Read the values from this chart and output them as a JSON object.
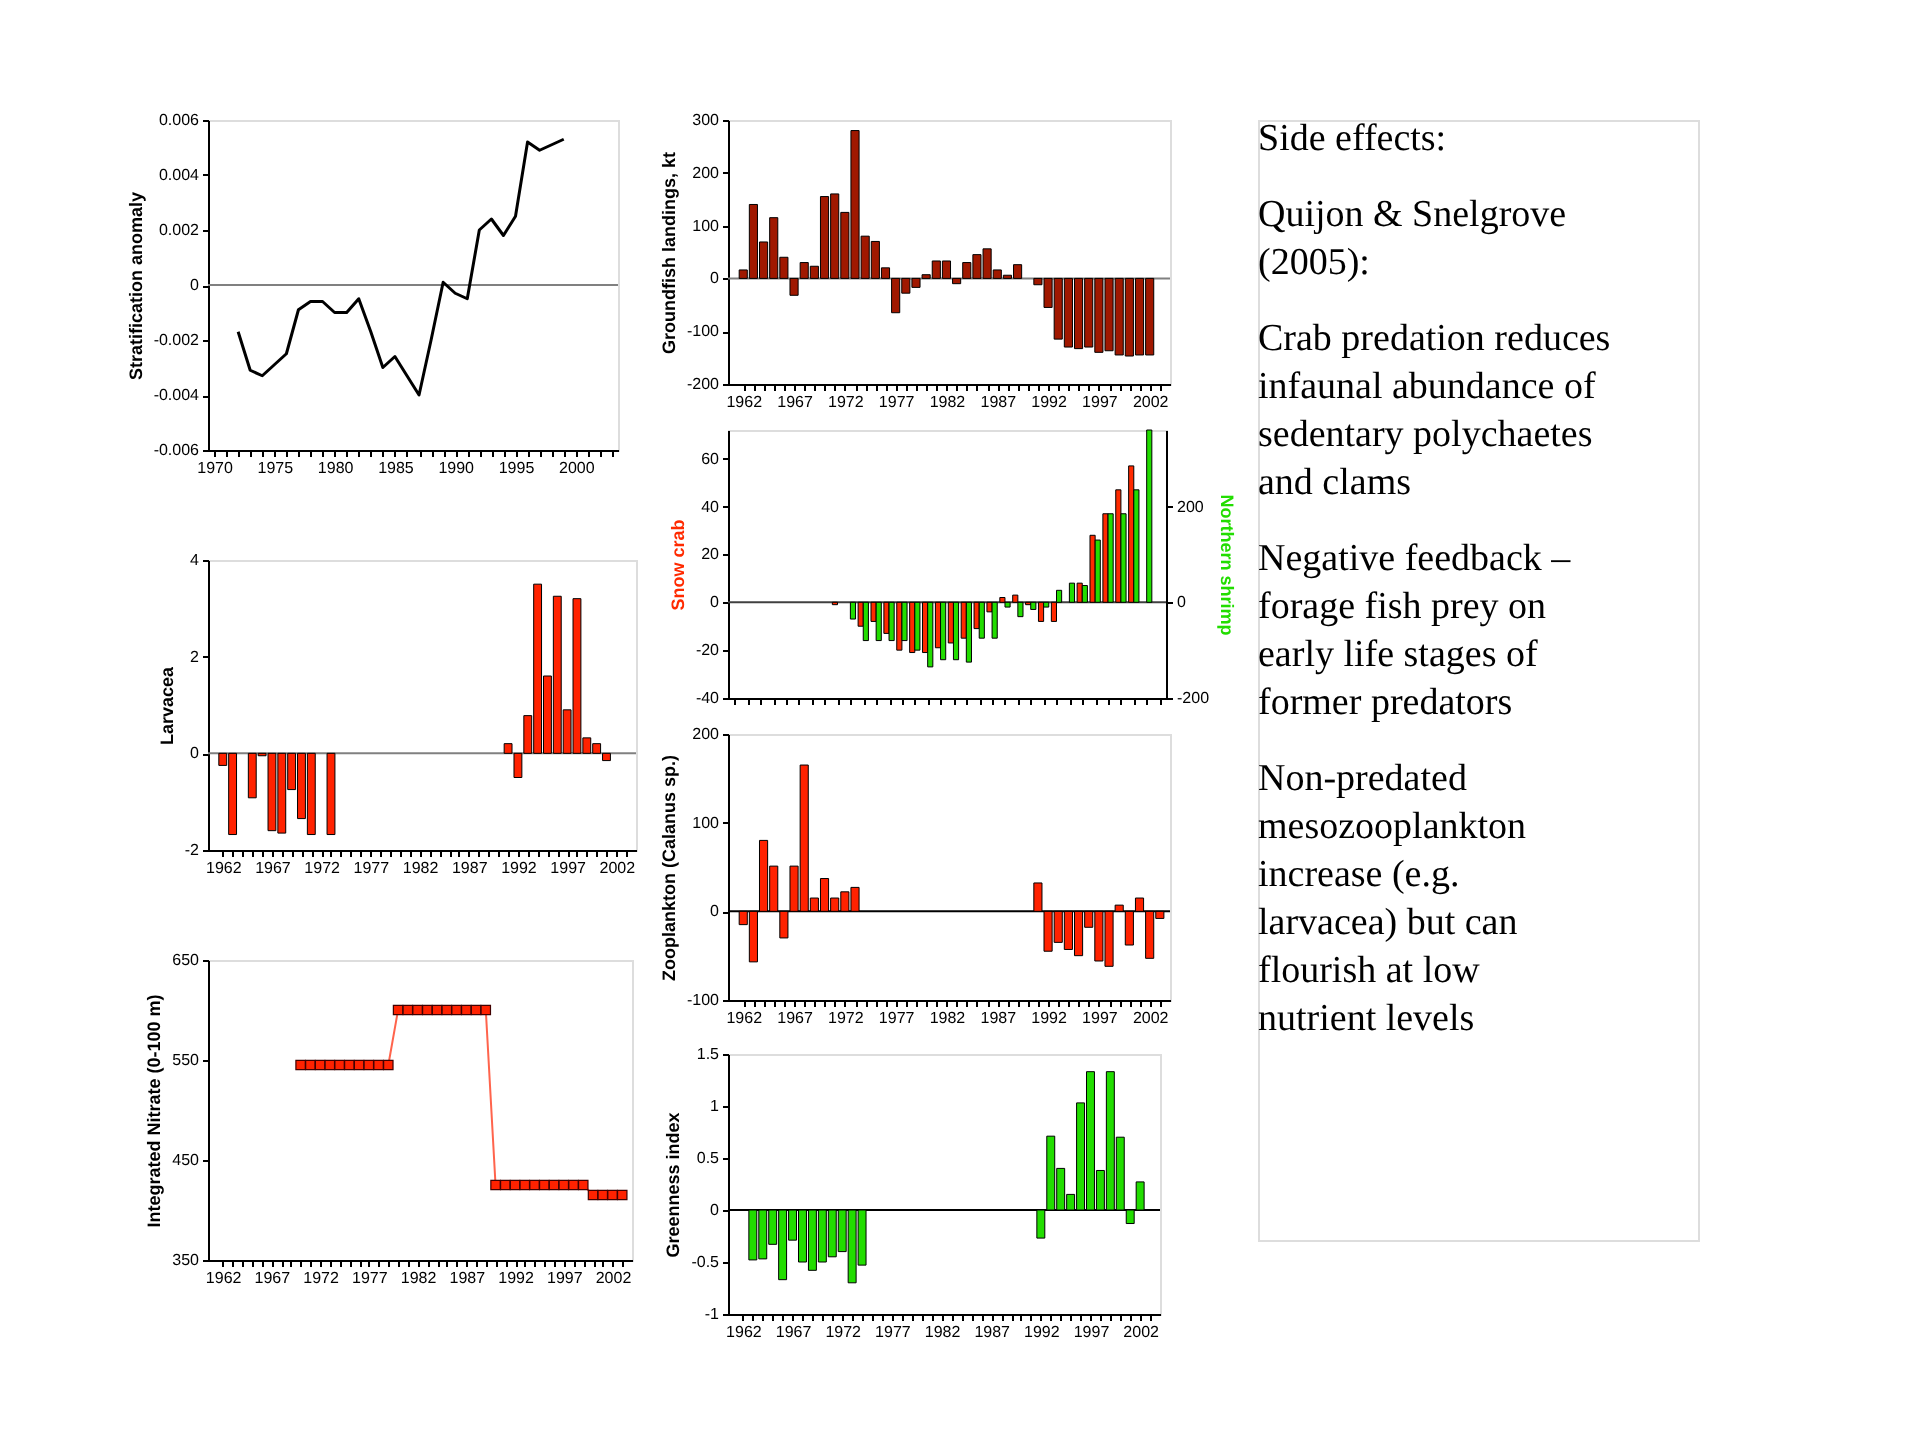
{
  "chart_data": [
    {
      "type": "line",
      "ylabel": "Stratification anomaly",
      "x": [
        1972,
        1973,
        1974,
        1975,
        1976,
        1977,
        1978,
        1979,
        1980,
        1981,
        1982,
        1983,
        1984,
        1985,
        1986,
        1987,
        1988,
        1989,
        1990,
        1991,
        1992,
        1993,
        1994,
        1995,
        1996,
        1997,
        1998,
        1999
      ],
      "series": [
        {
          "color": "#000000",
          "values": [
            -0.0017,
            -0.0031,
            -0.0033,
            -0.0029,
            -0.0025,
            -0.0009,
            -0.0006,
            -0.0006,
            -0.001,
            -0.001,
            -0.0005,
            -0.0017,
            -0.003,
            -0.0026,
            -0.0033,
            -0.004,
            -0.002,
            0.0001,
            -0.0003,
            -0.0005,
            0.002,
            0.0024,
            0.0018,
            0.0025,
            0.0052,
            0.0049,
            0.0051,
            0.0053
          ]
        }
      ],
      "xlim": [
        1969.5,
        2003.5
      ],
      "ylim": [
        -0.006,
        0.006
      ],
      "yticks": [
        -0.006,
        -0.004,
        -0.002,
        0,
        0.002,
        0.004,
        0.006
      ],
      "xticks": [
        1970,
        {
          "value": 1971,
          "label": null
        },
        {
          "value": 1972,
          "label": null
        },
        {
          "value": 1973,
          "label": null
        },
        {
          "value": 1974,
          "label": null
        },
        1975,
        {
          "value": 1976,
          "label": null
        },
        {
          "value": 1977,
          "label": null
        },
        {
          "value": 1978,
          "label": null
        },
        {
          "value": 1979,
          "label": null
        },
        1980,
        {
          "value": 1981,
          "label": null
        },
        {
          "value": 1982,
          "label": null
        },
        {
          "value": 1983,
          "label": null
        },
        {
          "value": 1984,
          "label": null
        },
        1985,
        {
          "value": 1986,
          "label": null
        },
        {
          "value": 1987,
          "label": null
        },
        {
          "value": 1988,
          "label": null
        },
        {
          "value": 1989,
          "label": null
        },
        1990,
        {
          "value": 1991,
          "label": null
        },
        {
          "value": 1992,
          "label": null
        },
        {
          "value": 1993,
          "label": null
        },
        {
          "value": 1994,
          "label": null
        },
        1995,
        {
          "value": 1996,
          "label": null
        },
        {
          "value": 1997,
          "label": null
        },
        {
          "value": 1998,
          "label": null
        },
        {
          "value": 1999,
          "label": null
        },
        2000,
        {
          "value": 2001,
          "label": null
        },
        {
          "value": 2002,
          "label": null
        },
        {
          "value": 2003,
          "label": null
        }
      ],
      "ref_lines": [
        {
          "axis": "y",
          "value": 0,
          "color": "#808080"
        }
      ]
    },
    {
      "type": "bar",
      "ylabel": "Larvacea",
      "x": [
        1962,
        1963,
        1965,
        1966,
        1967,
        1968,
        1969,
        1970,
        1971,
        1973,
        1991,
        1992,
        1993,
        1994,
        1995,
        1996,
        1997,
        1998,
        1999,
        2000,
        2001
      ],
      "values": [
        -0.25,
        -1.68,
        -0.92,
        -0.05,
        -1.6,
        -1.65,
        -0.75,
        -1.35,
        -1.68,
        -1.68,
        0.2,
        -0.5,
        0.78,
        3.5,
        1.6,
        3.25,
        0.9,
        3.2,
        0.32,
        0.2,
        -0.15
      ],
      "color": "#ff2200",
      "xlim": [
        1960.5,
        2004
      ],
      "ylim": [
        -2,
        4
      ],
      "yticks": [
        -2,
        0,
        2,
        4
      ],
      "xticks": [
        1962,
        {
          "value": 1963,
          "label": null
        },
        {
          "value": 1964,
          "label": null
        },
        {
          "value": 1965,
          "label": null
        },
        {
          "value": 1966,
          "label": null
        },
        1967,
        {
          "value": 1968,
          "label": null
        },
        {
          "value": 1969,
          "label": null
        },
        {
          "value": 1970,
          "label": null
        },
        {
          "value": 1971,
          "label": null
        },
        1972,
        {
          "value": 1973,
          "label": null
        },
        {
          "value": 1974,
          "label": null
        },
        {
          "value": 1975,
          "label": null
        },
        {
          "value": 1976,
          "label": null
        },
        1977,
        {
          "value": 1978,
          "label": null
        },
        {
          "value": 1979,
          "label": null
        },
        {
          "value": 1980,
          "label": null
        },
        {
          "value": 1981,
          "label": null
        },
        1982,
        {
          "value": 1983,
          "label": null
        },
        {
          "value": 1984,
          "label": null
        },
        {
          "value": 1985,
          "label": null
        },
        {
          "value": 1986,
          "label": null
        },
        1987,
        {
          "value": 1988,
          "label": null
        },
        {
          "value": 1989,
          "label": null
        },
        {
          "value": 1990,
          "label": null
        },
        {
          "value": 1991,
          "label": null
        },
        1992,
        {
          "value": 1993,
          "label": null
        },
        {
          "value": 1994,
          "label": null
        },
        {
          "value": 1995,
          "label": null
        },
        {
          "value": 1996,
          "label": null
        },
        1997,
        {
          "value": 1998,
          "label": null
        },
        {
          "value": 1999,
          "label": null
        },
        {
          "value": 2000,
          "label": null
        },
        {
          "value": 2001,
          "label": null
        },
        2002,
        {
          "value": 2003,
          "label": null
        }
      ],
      "ref_lines": [
        {
          "axis": "y",
          "value": 0,
          "color": "#808080"
        }
      ]
    },
    {
      "type": "line",
      "ylabel": "Integrated Nitrate (0-100 m)",
      "marker": "square",
      "x": [
        1970,
        1971,
        1972,
        1973,
        1974,
        1975,
        1976,
        1977,
        1978,
        1979,
        1980,
        1981,
        1982,
        1983,
        1984,
        1985,
        1986,
        1987,
        1988,
        1989,
        1990,
        1991,
        1992,
        1993,
        1994,
        1995,
        1996,
        1997,
        1998,
        1999,
        2000,
        2001,
        2002,
        2003
      ],
      "series": [
        {
          "color": "#ff2200",
          "values": [
            545,
            545,
            545,
            545,
            545,
            545,
            545,
            545,
            545,
            545,
            600,
            600,
            600,
            600,
            600,
            600,
            600,
            600,
            600,
            600,
            425,
            425,
            425,
            425,
            425,
            425,
            425,
            425,
            425,
            425,
            415,
            415,
            415,
            415
          ]
        }
      ],
      "xlim": [
        1960.5,
        2004
      ],
      "ylim": [
        350,
        650
      ],
      "yticks": [
        350,
        450,
        550,
        650
      ],
      "xticks": [
        1962,
        {
          "value": 1963,
          "label": null
        },
        {
          "value": 1964,
          "label": null
        },
        {
          "value": 1965,
          "label": null
        },
        {
          "value": 1966,
          "label": null
        },
        1967,
        {
          "value": 1968,
          "label": null
        },
        {
          "value": 1969,
          "label": null
        },
        {
          "value": 1970,
          "label": null
        },
        {
          "value": 1971,
          "label": null
        },
        1972,
        {
          "value": 1973,
          "label": null
        },
        {
          "value": 1974,
          "label": null
        },
        {
          "value": 1975,
          "label": null
        },
        {
          "value": 1976,
          "label": null
        },
        1977,
        {
          "value": 1978,
          "label": null
        },
        {
          "value": 1979,
          "label": null
        },
        {
          "value": 1980,
          "label": null
        },
        {
          "value": 1981,
          "label": null
        },
        1982,
        {
          "value": 1983,
          "label": null
        },
        {
          "value": 1984,
          "label": null
        },
        {
          "value": 1985,
          "label": null
        },
        {
          "value": 1986,
          "label": null
        },
        1987,
        {
          "value": 1988,
          "label": null
        },
        {
          "value": 1989,
          "label": null
        },
        {
          "value": 1990,
          "label": null
        },
        {
          "value": 1991,
          "label": null
        },
        1992,
        {
          "value": 1993,
          "label": null
        },
        {
          "value": 1994,
          "label": null
        },
        {
          "value": 1995,
          "label": null
        },
        {
          "value": 1996,
          "label": null
        },
        1997,
        {
          "value": 1998,
          "label": null
        },
        {
          "value": 1999,
          "label": null
        },
        {
          "value": 2000,
          "label": null
        },
        {
          "value": 2001,
          "label": null
        },
        2002,
        {
          "value": 2003,
          "label": null
        }
      ]
    },
    {
      "type": "bar",
      "ylabel": "Groundfish landings, kt",
      "x": [
        1962,
        1963,
        1964,
        1965,
        1966,
        1967,
        1968,
        1969,
        1970,
        1971,
        1972,
        1973,
        1974,
        1975,
        1976,
        1977,
        1978,
        1979,
        1980,
        1981,
        1982,
        1983,
        1984,
        1985,
        1986,
        1987,
        1988,
        1989,
        1991,
        1992,
        1993,
        1994,
        1995,
        1996,
        1997,
        1998,
        1999,
        2000,
        2001,
        2002
      ],
      "values": [
        16,
        140,
        69,
        115,
        40,
        -32,
        30,
        23,
        155,
        160,
        125,
        280,
        80,
        70,
        20,
        -65,
        -28,
        -17,
        7,
        33,
        33,
        -10,
        30,
        45,
        56,
        16,
        6,
        26,
        -12,
        -55,
        -115,
        -130,
        -133,
        -130,
        -140,
        -137,
        -145,
        -147,
        -145,
        -145
      ],
      "color": "#a01800",
      "xlim": [
        1960.5,
        2004
      ],
      "ylim": [
        -200,
        300
      ],
      "yticks": [
        -200,
        -100,
        0,
        100,
        200,
        300
      ],
      "xticks": [
        1962,
        {
          "value": 1963,
          "label": null
        },
        {
          "value": 1964,
          "label": null
        },
        {
          "value": 1965,
          "label": null
        },
        {
          "value": 1966,
          "label": null
        },
        1967,
        {
          "value": 1968,
          "label": null
        },
        {
          "value": 1969,
          "label": null
        },
        {
          "value": 1970,
          "label": null
        },
        {
          "value": 1971,
          "label": null
        },
        1972,
        {
          "value": 1973,
          "label": null
        },
        {
          "value": 1974,
          "label": null
        },
        {
          "value": 1975,
          "label": null
        },
        {
          "value": 1976,
          "label": null
        },
        1977,
        {
          "value": 1978,
          "label": null
        },
        {
          "value": 1979,
          "label": null
        },
        {
          "value": 1980,
          "label": null
        },
        {
          "value": 1981,
          "label": null
        },
        1982,
        {
          "value": 1983,
          "label": null
        },
        {
          "value": 1984,
          "label": null
        },
        {
          "value": 1985,
          "label": null
        },
        {
          "value": 1986,
          "label": null
        },
        1987,
        {
          "value": 1988,
          "label": null
        },
        {
          "value": 1989,
          "label": null
        },
        {
          "value": 1990,
          "label": null
        },
        {
          "value": 1991,
          "label": null
        },
        1992,
        {
          "value": 1993,
          "label": null
        },
        {
          "value": 1994,
          "label": null
        },
        {
          "value": 1995,
          "label": null
        },
        {
          "value": 1996,
          "label": null
        },
        1997,
        {
          "value": 1998,
          "label": null
        },
        {
          "value": 1999,
          "label": null
        },
        {
          "value": 2000,
          "label": null
        },
        {
          "value": 2001,
          "label": null
        },
        2002,
        {
          "value": 2003,
          "label": null
        }
      ],
      "ref_lines": [
        {
          "axis": "y",
          "value": 0,
          "color": "#808080"
        }
      ]
    },
    {
      "type": "bar",
      "ylabel": "Snow crab",
      "y2label": "Northern shrimp",
      "tick_labels": "y",
      "categories": [
        null,
        null,
        null,
        null,
        null,
        null,
        null,
        null,
        null,
        null,
        null,
        null,
        null,
        null,
        null,
        null,
        null,
        null,
        null,
        null,
        null,
        null,
        null,
        null,
        null,
        null,
        null,
        null,
        null,
        null,
        null,
        null,
        null,
        null
      ],
      "series": [
        {
          "color": "#ff2a00",
          "values": [
            null,
            null,
            null,
            null,
            null,
            null,
            null,
            null,
            -1,
            null,
            -10,
            -8,
            -13,
            -20,
            -21,
            -21,
            -19,
            -17,
            -15,
            -11,
            -4,
            2,
            3,
            -1,
            -8,
            -8,
            null,
            8,
            28,
            37,
            47,
            57,
            null,
            null
          ]
        },
        {
          "color": "#22dd00",
          "axis": "y2",
          "values": [
            null,
            null,
            null,
            null,
            null,
            null,
            null,
            null,
            null,
            -35,
            -80,
            -80,
            -80,
            -80,
            -100,
            -135,
            -120,
            -120,
            -125,
            -75,
            -75,
            -10,
            -30,
            -15,
            -10,
            25,
            40,
            35,
            130,
            185,
            185,
            235,
            360,
            null
          ]
        }
      ],
      "ylim": [
        -40,
        72
      ],
      "yticks": [
        -40,
        -20,
        0,
        20,
        40,
        60
      ],
      "y2lim": [
        -200,
        360
      ],
      "y2ticks": [
        -200,
        0,
        200
      ],
      "ref_lines": [
        {
          "axis": "y",
          "value": 0,
          "color": "#404040"
        }
      ]
    },
    {
      "type": "bar",
      "ylabel": "Zooplankton (Calanus sp.)",
      "x": [
        1962,
        1963,
        1964,
        1965,
        1966,
        1967,
        1968,
        1969,
        1970,
        1971,
        1972,
        1973,
        1991,
        1992,
        1993,
        1994,
        1995,
        1996,
        1997,
        1998,
        1999,
        2000,
        2001,
        2002,
        2003
      ],
      "values": [
        -15,
        -57,
        80,
        51,
        -30,
        51,
        165,
        15,
        37,
        15,
        22,
        27,
        32,
        -45,
        -35,
        -43,
        -50,
        -18,
        -56,
        -62,
        7,
        -38,
        15,
        -53,
        -8
      ],
      "color": "#ff2200",
      "xlim": [
        1960.5,
        2004
      ],
      "ylim": [
        -100,
        200
      ],
      "yticks": [
        -100,
        0,
        100,
        200
      ],
      "xticks": [
        1962,
        {
          "value": 1963,
          "label": null
        },
        {
          "value": 1964,
          "label": null
        },
        {
          "value": 1965,
          "label": null
        },
        {
          "value": 1966,
          "label": null
        },
        1967,
        {
          "value": 1968,
          "label": null
        },
        {
          "value": 1969,
          "label": null
        },
        {
          "value": 1970,
          "label": null
        },
        {
          "value": 1971,
          "label": null
        },
        1972,
        {
          "value": 1973,
          "label": null
        },
        {
          "value": 1974,
          "label": null
        },
        {
          "value": 1975,
          "label": null
        },
        {
          "value": 1976,
          "label": null
        },
        1977,
        {
          "value": 1978,
          "label": null
        },
        {
          "value": 1979,
          "label": null
        },
        {
          "value": 1980,
          "label": null
        },
        {
          "value": 1981,
          "label": null
        },
        1982,
        {
          "value": 1983,
          "label": null
        },
        {
          "value": 1984,
          "label": null
        },
        {
          "value": 1985,
          "label": null
        },
        {
          "value": 1986,
          "label": null
        },
        1987,
        {
          "value": 1988,
          "label": null
        },
        {
          "value": 1989,
          "label": null
        },
        {
          "value": 1990,
          "label": null
        },
        {
          "value": 1991,
          "label": null
        },
        1992,
        {
          "value": 1993,
          "label": null
        },
        {
          "value": 1994,
          "label": null
        },
        {
          "value": 1995,
          "label": null
        },
        {
          "value": 1996,
          "label": null
        },
        1997,
        {
          "value": 1998,
          "label": null
        },
        {
          "value": 1999,
          "label": null
        },
        {
          "value": 2000,
          "label": null
        },
        {
          "value": 2001,
          "label": null
        },
        2002,
        {
          "value": 2003,
          "label": null
        }
      ],
      "ref_lines": [
        {
          "axis": "y",
          "value": 0,
          "color": "#000000"
        }
      ]
    },
    {
      "type": "bar",
      "ylabel": "Greenness index",
      "x": [
        1963,
        1964,
        1965,
        1966,
        1967,
        1968,
        1969,
        1970,
        1971,
        1972,
        1973,
        1974,
        1992,
        1993,
        1994,
        1995,
        1996,
        1997,
        1998,
        1999,
        2000,
        2001,
        2002
      ],
      "values": [
        -0.48,
        -0.47,
        -0.33,
        -0.67,
        -0.29,
        -0.5,
        -0.58,
        -0.5,
        -0.45,
        -0.4,
        -0.7,
        -0.53,
        -0.27,
        0.71,
        0.4,
        0.15,
        1.03,
        1.33,
        0.38,
        1.33,
        0.7,
        -0.13,
        0.27
      ],
      "color": "#22dd00",
      "xlim": [
        1960.5,
        2004
      ],
      "ylim": [
        -1,
        1.5
      ],
      "yticks": [
        -1,
        -0.5,
        0,
        0.5,
        1,
        1.5
      ],
      "xticks": [
        1962,
        {
          "value": 1963,
          "label": null
        },
        {
          "value": 1964,
          "label": null
        },
        {
          "value": 1965,
          "label": null
        },
        {
          "value": 1966,
          "label": null
        },
        1967,
        {
          "value": 1968,
          "label": null
        },
        {
          "value": 1969,
          "label": null
        },
        {
          "value": 1970,
          "label": null
        },
        {
          "value": 1971,
          "label": null
        },
        1972,
        {
          "value": 1973,
          "label": null
        },
        {
          "value": 1974,
          "label": null
        },
        {
          "value": 1975,
          "label": null
        },
        {
          "value": 1976,
          "label": null
        },
        1977,
        {
          "value": 1978,
          "label": null
        },
        {
          "value": 1979,
          "label": null
        },
        {
          "value": 1980,
          "label": null
        },
        {
          "value": 1981,
          "label": null
        },
        1982,
        {
          "value": 1983,
          "label": null
        },
        {
          "value": 1984,
          "label": null
        },
        {
          "value": 1985,
          "label": null
        },
        {
          "value": 1986,
          "label": null
        },
        1987,
        {
          "value": 1988,
          "label": null
        },
        {
          "value": 1989,
          "label": null
        },
        {
          "value": 1990,
          "label": null
        },
        {
          "value": 1991,
          "label": null
        },
        1992,
        {
          "value": 1993,
          "label": null
        },
        {
          "value": 1994,
          "label": null
        },
        {
          "value": 1995,
          "label": null
        },
        {
          "value": 1996,
          "label": null
        },
        1997,
        {
          "value": 1998,
          "label": null
        },
        {
          "value": 1999,
          "label": null
        },
        {
          "value": 2000,
          "label": null
        },
        {
          "value": 2001,
          "label": null
        },
        2002,
        {
          "value": 2003,
          "label": null
        }
      ],
      "ref_lines": [
        {
          "axis": "y",
          "value": 0,
          "color": "#000000"
        }
      ]
    },
    {
      "type": "other",
      "annotations": [
        "Side effects:",
        "Quijon & Snelgrove (2005):",
        "Crab predation reduces infaunal abundance of sedentary polychaetes and clams",
        "Negative feedback – forage fish prey on early life stages of former predators",
        "Non-predated mesozooplankton increase (e.g. larvacea) but can flourish at low nutrient levels"
      ]
    }
  ]
}
